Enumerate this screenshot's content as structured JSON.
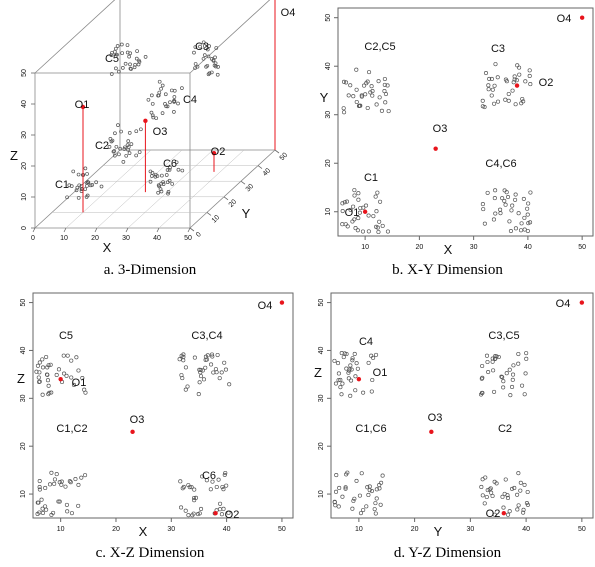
{
  "colors": {
    "cluster": "#555555",
    "outlier": "#e8141c",
    "axis": "#666666",
    "text": "#111111",
    "box": "#888888"
  },
  "figure": {
    "panels": [
      {
        "id": "3d",
        "caption": "a. 3-Dimension",
        "chart_data": {
          "type": "scatter",
          "axes": {
            "x": "X",
            "y": "Y",
            "z": "Z"
          },
          "xlim": [
            0,
            50
          ],
          "ylim": [
            0,
            50
          ],
          "zlim": [
            0,
            50
          ],
          "ticks": {
            "x": [
              "0",
              "10",
              "20",
              "30",
              "40",
              "50"
            ],
            "y": [
              "0",
              "10",
              "20",
              "30",
              "40",
              "50"
            ],
            "z": [
              "0",
              "10",
              "20",
              "30",
              "40",
              "50"
            ]
          },
          "clusters": [
            {
              "name": "C1",
              "center": [
                10,
                10,
                10
              ]
            },
            {
              "name": "C2",
              "center": [
                10,
                35,
                10
              ]
            },
            {
              "name": "C3",
              "center": [
                36,
                36,
                36
              ]
            },
            {
              "name": "C4",
              "center": [
                36,
                10,
                36
              ]
            },
            {
              "name": "C5",
              "center": [
                10,
                36,
                36
              ]
            },
            {
              "name": "C6",
              "center": [
                36,
                10,
                10
              ]
            }
          ],
          "outliers": [
            {
              "name": "O1",
              "point": [
                10,
                10,
                34
              ]
            },
            {
              "name": "O2",
              "point": [
                38,
                36,
                6
              ]
            },
            {
              "name": "O3",
              "point": [
                23,
                23,
                23
              ]
            },
            {
              "name": "O4",
              "point": [
                50,
                50,
                50
              ]
            }
          ]
        }
      },
      {
        "id": "xy",
        "caption": "b. X-Y Dimension",
        "chart_data": {
          "type": "scatter",
          "xlabel": "X",
          "ylabel": "Y",
          "xlim": [
            5,
            52
          ],
          "ylim": [
            5,
            52
          ],
          "xticks": [
            "10",
            "20",
            "30",
            "40",
            "50"
          ],
          "yticks": [
            "10",
            "20",
            "30",
            "40",
            "50"
          ],
          "clusters": [
            {
              "label": "C1",
              "center": [
                10,
                10
              ]
            },
            {
              "label": "C2,C5",
              "center": [
                10,
                35
              ]
            },
            {
              "label": "C3",
              "center": [
                36,
                36
              ]
            },
            {
              "label": "C4,C6",
              "center": [
                36,
                10
              ]
            }
          ],
          "outliers": [
            {
              "label": "O1",
              "point": [
                10,
                10
              ]
            },
            {
              "label": "O2",
              "point": [
                38,
                36
              ]
            },
            {
              "label": "O3",
              "point": [
                23,
                23
              ]
            },
            {
              "label": "O4",
              "point": [
                50,
                50
              ]
            }
          ]
        }
      },
      {
        "id": "xz",
        "caption": "c. X-Z Dimension",
        "chart_data": {
          "type": "scatter",
          "xlabel": "X",
          "ylabel": "Z",
          "xlim": [
            5,
            52
          ],
          "ylim": [
            5,
            52
          ],
          "xticks": [
            "10",
            "20",
            "30",
            "40",
            "50"
          ],
          "yticks": [
            "10",
            "20",
            "30",
            "40",
            "50"
          ],
          "clusters": [
            {
              "label": "C5",
              "center": [
                10,
                35
              ]
            },
            {
              "label": "C3,C4",
              "center": [
                36,
                35
              ]
            },
            {
              "label": "C1,C2",
              "center": [
                10,
                10
              ]
            },
            {
              "label": "C6",
              "center": [
                36,
                10
              ]
            }
          ],
          "outliers": [
            {
              "label": "O1",
              "point": [
                10,
                34
              ]
            },
            {
              "label": "O2",
              "point": [
                38,
                6
              ]
            },
            {
              "label": "O3",
              "point": [
                23,
                23
              ]
            },
            {
              "label": "O4",
              "point": [
                50,
                50
              ]
            }
          ]
        }
      },
      {
        "id": "yz",
        "caption": "d. Y-Z Dimension",
        "chart_data": {
          "type": "scatter",
          "xlabel": "Y",
          "ylabel": "Z",
          "xlim": [
            5,
            52
          ],
          "ylim": [
            5,
            52
          ],
          "xticks": [
            "10",
            "20",
            "30",
            "40",
            "50"
          ],
          "yticks": [
            "10",
            "20",
            "30",
            "40",
            "50"
          ],
          "clusters": [
            {
              "label": "C4",
              "center": [
                10,
                35
              ]
            },
            {
              "label": "C3,C5",
              "center": [
                36,
                35
              ]
            },
            {
              "label": "C1,C6",
              "center": [
                10,
                10
              ]
            },
            {
              "label": "C2",
              "center": [
                36,
                10
              ]
            }
          ],
          "outliers": [
            {
              "label": "O1",
              "point": [
                10,
                34
              ]
            },
            {
              "label": "O2",
              "point": [
                36,
                6
              ]
            },
            {
              "label": "O3",
              "point": [
                23,
                23
              ]
            },
            {
              "label": "O4",
              "point": [
                50,
                50
              ]
            }
          ]
        }
      }
    ]
  }
}
